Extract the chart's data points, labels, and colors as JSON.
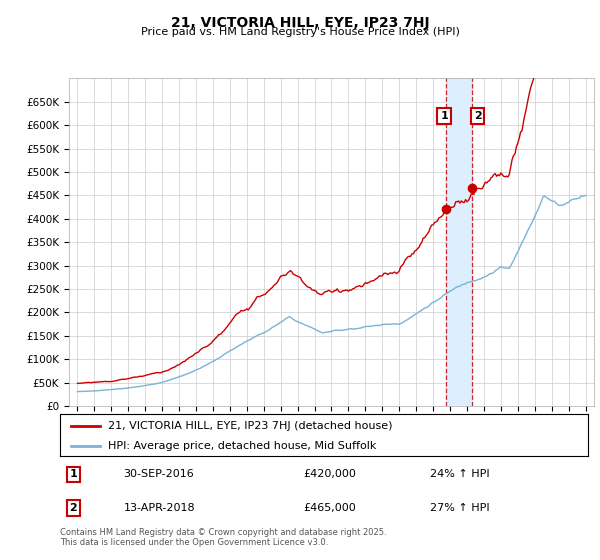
{
  "title": "21, VICTORIA HILL, EYE, IP23 7HJ",
  "subtitle": "Price paid vs. HM Land Registry's House Price Index (HPI)",
  "footer": "Contains HM Land Registry data © Crown copyright and database right 2025.\nThis data is licensed under the Open Government Licence v3.0.",
  "legend_line1": "21, VICTORIA HILL, EYE, IP23 7HJ (detached house)",
  "legend_line2": "HPI: Average price, detached house, Mid Suffolk",
  "transaction1_date": "30-SEP-2016",
  "transaction1_price": "£420,000",
  "transaction1_hpi": "24% ↑ HPI",
  "transaction1_x": 2016.75,
  "transaction1_y": 420000,
  "transaction2_date": "13-APR-2018",
  "transaction2_price": "£465,000",
  "transaction2_hpi": "27% ↑ HPI",
  "transaction2_x": 2018.29,
  "transaction2_y": 465000,
  "ylim": [
    0,
    700000
  ],
  "yticks": [
    0,
    50000,
    100000,
    150000,
    200000,
    250000,
    300000,
    350000,
    400000,
    450000,
    500000,
    550000,
    600000,
    650000
  ],
  "xlim_start": 1994.5,
  "xlim_end": 2025.5,
  "hpi_color": "#7ab3d4",
  "price_color": "#cc0000",
  "background_color": "#ffffff",
  "grid_color": "#cccccc",
  "highlight_color": "#ddeeff"
}
